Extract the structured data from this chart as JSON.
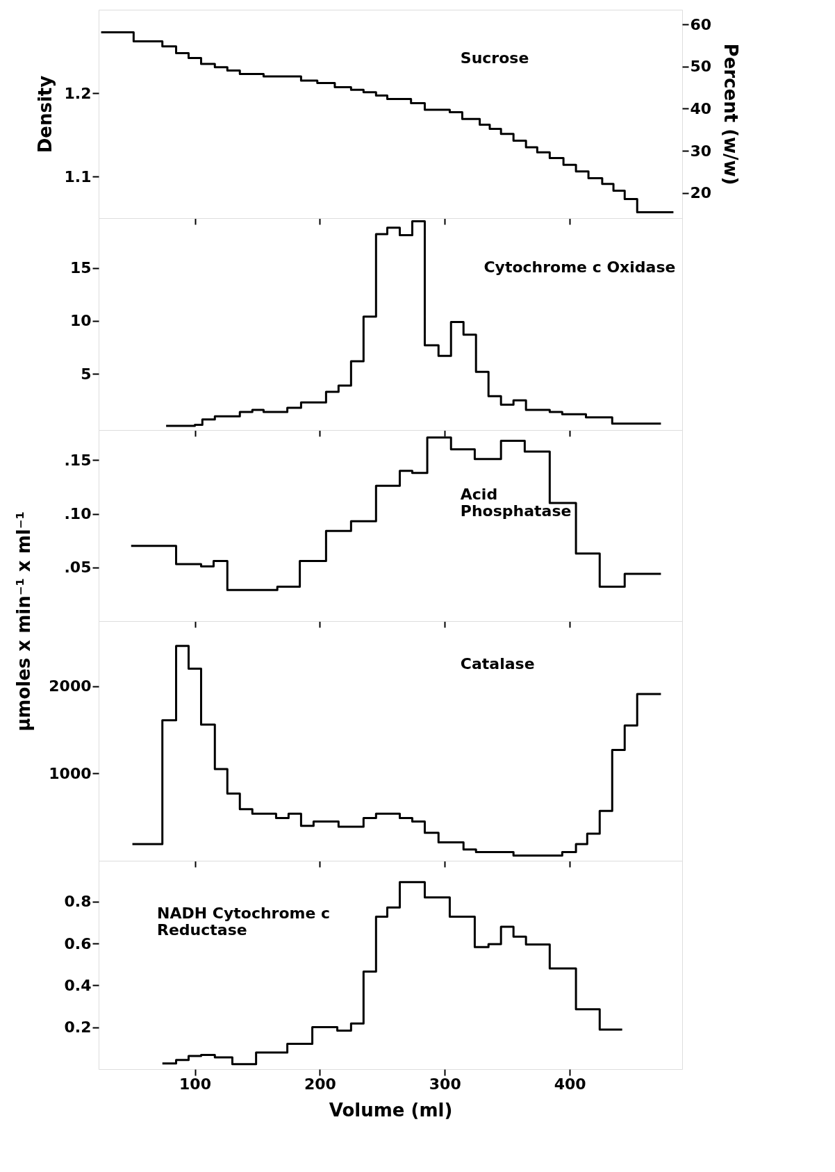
{
  "chart_data": [
    {
      "type": "step",
      "ylabel": "Density",
      "y2label": "Percent (w/w)",
      "xlim": [
        23,
        490
      ],
      "xticks": [
        100,
        200,
        300,
        400
      ],
      "ylim": [
        1.05,
        1.3
      ],
      "yticks": [
        1.1,
        1.2
      ],
      "y2lim": [
        14,
        63.5
      ],
      "y2ticks": [
        20,
        30,
        40,
        50,
        60
      ],
      "tick_labels": "y",
      "series": [
        {
          "name": "Sucrose",
          "color": "#000000",
          "x": [
            25,
            51,
            74,
            85,
            95,
            105,
            116,
            126,
            136,
            155,
            185,
            198,
            212,
            225,
            235,
            245,
            254,
            273,
            284,
            304,
            314,
            328,
            336,
            345,
            355,
            365,
            374,
            384,
            395,
            405,
            415,
            426,
            435,
            444,
            454,
            483
          ],
          "values": [
            1.273,
            1.262,
            1.256,
            1.248,
            1.242,
            1.235,
            1.231,
            1.227,
            1.223,
            1.22,
            1.215,
            1.212,
            1.207,
            1.204,
            1.201,
            1.197,
            1.193,
            1.188,
            1.18,
            1.177,
            1.169,
            1.162,
            1.157,
            1.151,
            1.143,
            1.135,
            1.129,
            1.122,
            1.114,
            1.106,
            1.098,
            1.091,
            1.083,
            1.073,
            1.057,
            1.057
          ]
        }
      ]
    },
    {
      "type": "step",
      "xlim": [
        23,
        490
      ],
      "xticks": [
        100,
        200,
        300,
        400
      ],
      "ylim": [
        -0.3,
        19.7
      ],
      "yticks": [
        5,
        10,
        15
      ],
      "tick_labels": "y",
      "series": [
        {
          "name": "Cytochrome c Oxidase",
          "color": "#000000",
          "x": [
            77,
            100,
            106,
            116,
            136,
            146,
            155,
            174,
            185,
            205,
            215,
            225,
            235,
            245,
            254,
            264,
            274,
            284,
            295,
            305,
            315,
            325,
            335,
            345,
            355,
            365,
            384,
            394,
            413,
            434,
            473
          ],
          "values": [
            0.1,
            0.2,
            0.7,
            1.0,
            1.4,
            1.6,
            1.4,
            1.8,
            2.3,
            3.3,
            3.9,
            6.2,
            10.4,
            18.2,
            18.8,
            18.1,
            19.4,
            7.7,
            6.7,
            9.9,
            8.7,
            5.2,
            2.9,
            2.1,
            2.5,
            1.6,
            1.4,
            1.2,
            0.9,
            0.3,
            0.3
          ]
        }
      ]
    },
    {
      "type": "step",
      "ylabel": "μmoles x min⁻¹ x ml⁻¹",
      "xlim": [
        23,
        490
      ],
      "xticks": [
        100,
        200,
        300,
        400
      ],
      "ylim": [
        0,
        0.178
      ],
      "yticks": [
        {
          "value": 0.05,
          "label": ".05"
        },
        {
          "value": 0.1,
          "label": ".10"
        },
        {
          "value": 0.15,
          "label": ".15"
        }
      ],
      "tick_labels": "y",
      "series": [
        {
          "name": "Acid\nPhosphatase",
          "color": "#000000",
          "x": [
            49,
            85,
            105,
            115,
            126,
            166,
            184,
            205,
            225,
            245,
            264,
            274,
            286,
            305,
            324,
            345,
            364,
            384,
            405,
            424,
            444,
            473
          ],
          "values": [
            0.07,
            0.053,
            0.051,
            0.056,
            0.029,
            0.032,
            0.056,
            0.084,
            0.093,
            0.126,
            0.14,
            0.138,
            0.171,
            0.16,
            0.151,
            0.168,
            0.158,
            0.11,
            0.063,
            0.032,
            0.044,
            0.044
          ]
        }
      ]
    },
    {
      "type": "step",
      "xlim": [
        23,
        490
      ],
      "xticks": [
        100,
        200,
        300,
        400
      ],
      "ylim": [
        0,
        2745
      ],
      "yticks": [
        1000,
        2000
      ],
      "tick_labels": "y",
      "series": [
        {
          "name": "Catalase",
          "color": "#000000",
          "x": [
            50,
            74,
            85,
            95,
            105,
            116,
            126,
            136,
            146,
            165,
            175,
            185,
            195,
            215,
            235,
            245,
            264,
            274,
            284,
            295,
            315,
            325,
            355,
            394,
            405,
            414,
            424,
            434,
            444,
            454,
            464,
            473
          ],
          "values": [
            190,
            1610,
            2460,
            2200,
            1560,
            1050,
            770,
            590,
            540,
            490,
            540,
            400,
            450,
            390,
            490,
            540,
            490,
            450,
            320,
            210,
            130,
            100,
            60,
            100,
            190,
            310,
            570,
            1270,
            1550,
            1910,
            1910,
            1910
          ]
        }
      ]
    },
    {
      "type": "step",
      "xlabel": "Volume (ml)",
      "xlim": [
        23,
        490
      ],
      "xticks": [
        100,
        200,
        300,
        400
      ],
      "ylim": [
        0,
        0.995
      ],
      "yticks": [
        0.2,
        0.4,
        0.6,
        0.8
      ],
      "series": [
        {
          "name": "NADH Cytochrome c\nReductase",
          "color": "#000000",
          "x": [
            74,
            85,
            95,
            105,
            116,
            130,
            149,
            174,
            194,
            214,
            225,
            235,
            245,
            254,
            264,
            284,
            304,
            324,
            335,
            345,
            355,
            365,
            384,
            405,
            424,
            442
          ],
          "values": [
            0.027,
            0.044,
            0.063,
            0.068,
            0.056,
            0.024,
            0.08,
            0.121,
            0.201,
            0.184,
            0.218,
            0.466,
            0.728,
            0.772,
            0.893,
            0.82,
            0.728,
            0.583,
            0.597,
            0.68,
            0.633,
            0.595,
            0.481,
            0.286,
            0.189,
            0.189
          ]
        }
      ]
    }
  ]
}
